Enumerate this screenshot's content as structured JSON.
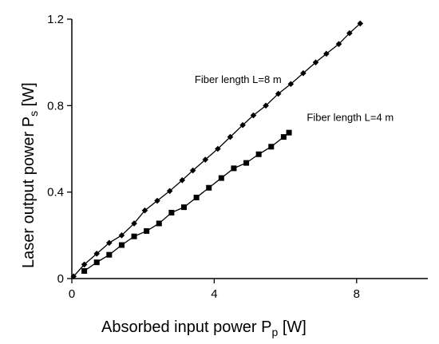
{
  "chart_data": {
    "type": "line",
    "xlabel": "Absorbed input power P",
    "xlabel_sub": "p",
    "xlabel_unit": " [W]",
    "ylabel": "Laser output power P",
    "ylabel_sub": "s",
    "ylabel_unit": " [W]",
    "xlim": [
      0,
      10
    ],
    "ylim": [
      0,
      1.2
    ],
    "xticks": [
      {
        "value": 0,
        "label": "0"
      },
      {
        "value": 4,
        "label": "4"
      },
      {
        "value": 8,
        "label": "8"
      }
    ],
    "yticks": [
      {
        "value": 0,
        "label": "0"
      },
      {
        "value": 0.4,
        "label": "0.4"
      },
      {
        "value": 0.8,
        "label": "0.8"
      },
      {
        "value": 1.2,
        "label": "1.2"
      }
    ],
    "grid": false,
    "series": [
      {
        "name": "Fiber length L=8 m",
        "marker": "diamond",
        "color": "#000000",
        "x": [
          0.05,
          0.35,
          0.7,
          1.05,
          1.4,
          1.75,
          2.05,
          2.4,
          2.75,
          3.1,
          3.4,
          3.75,
          4.1,
          4.45,
          4.8,
          5.1,
          5.45,
          5.8,
          6.15,
          6.5,
          6.85,
          7.15,
          7.5,
          7.8,
          8.1
        ],
        "y": [
          0.01,
          0.065,
          0.115,
          0.165,
          0.2,
          0.255,
          0.315,
          0.36,
          0.405,
          0.455,
          0.5,
          0.55,
          0.6,
          0.655,
          0.71,
          0.755,
          0.8,
          0.855,
          0.9,
          0.95,
          1.0,
          1.04,
          1.085,
          1.135,
          1.18
        ]
      },
      {
        "name": "Fiber length L=4 m",
        "marker": "square",
        "color": "#000000",
        "x": [
          0.35,
          0.7,
          1.05,
          1.4,
          1.75,
          2.1,
          2.45,
          2.8,
          3.15,
          3.5,
          3.85,
          4.2,
          4.55,
          4.9,
          5.25,
          5.6,
          5.95,
          6.1
        ],
        "y": [
          0.035,
          0.075,
          0.11,
          0.155,
          0.195,
          0.22,
          0.255,
          0.305,
          0.33,
          0.375,
          0.42,
          0.465,
          0.51,
          0.535,
          0.575,
          0.61,
          0.655,
          0.675
        ]
      }
    ],
    "annotations": [
      {
        "text": "Fiber length L=8 m",
        "x": 3.45,
        "y": 0.905
      },
      {
        "text": "Fiber length L=4 m",
        "x": 6.6,
        "y": 0.73
      }
    ]
  }
}
